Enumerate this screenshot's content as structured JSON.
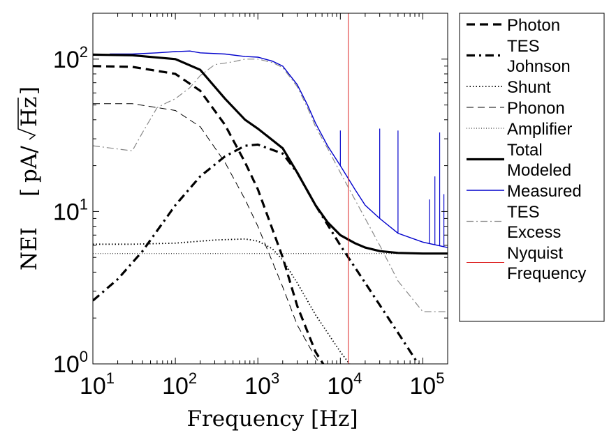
{
  "chart_data": {
    "type": "line",
    "x_scale": "log",
    "y_scale": "log",
    "xlim": [
      10,
      200000
    ],
    "ylim": [
      1,
      200
    ],
    "xlabel": "Frequency [Hz]",
    "ylabel": "NEI [pA/√Hz]",
    "ylabel_parts": {
      "base": "NEI",
      "unit_prefix": "pA/",
      "unit_radical": "Hz"
    },
    "x_ticks": [
      {
        "value": 10,
        "base": "10",
        "exp": "1"
      },
      {
        "value": 100,
        "base": "10",
        "exp": "2"
      },
      {
        "value": 1000,
        "base": "10",
        "exp": "3"
      },
      {
        "value": 10000,
        "base": "10",
        "exp": "4"
      },
      {
        "value": 100000,
        "base": "10",
        "exp": "5"
      }
    ],
    "y_ticks": [
      {
        "value": 1,
        "base": "10",
        "exp": "0"
      },
      {
        "value": 10,
        "base": "10",
        "exp": "1"
      },
      {
        "value": 100,
        "base": "10",
        "exp": "2"
      }
    ],
    "nyquist_frequency_hz": 12500,
    "legend_position": "outside-right",
    "series": [
      {
        "id": "photon",
        "name": "Photon",
        "legend": [
          "Photon"
        ],
        "color": "#000000",
        "dash": "dashed-thick",
        "x": [
          10,
          30,
          100,
          200,
          400,
          700,
          1000,
          2000,
          3000,
          5000,
          7000
        ],
        "y": [
          90,
          89,
          80,
          62,
          37,
          21,
          14,
          5,
          2.4,
          1.2,
          0.9
        ]
      },
      {
        "id": "tes_johnson",
        "name": "TES Johnson",
        "legend": [
          "TES",
          "Johnson"
        ],
        "color": "#000000",
        "dash": "dashdot-thick",
        "x": [
          10,
          20,
          40,
          100,
          200,
          400,
          700,
          1000,
          2000,
          3000,
          5000,
          10000,
          20000,
          50000,
          100000
        ],
        "y": [
          2.6,
          3.6,
          5.5,
          11,
          17,
          23,
          27,
          27.5,
          24,
          18,
          11,
          6,
          3.4,
          1.6,
          0.9
        ]
      },
      {
        "id": "shunt",
        "name": "Shunt",
        "legend": [
          "Shunt"
        ],
        "color": "#000000",
        "dash": "dotted",
        "x": [
          10,
          30,
          100,
          300,
          700,
          1000,
          1500,
          2000,
          3000,
          5000,
          10000,
          15000,
          20000
        ],
        "y": [
          6.1,
          6.1,
          6.2,
          6.5,
          6.6,
          6.4,
          5.7,
          4.8,
          3.4,
          2.1,
          1.2,
          0.9,
          0.8
        ]
      },
      {
        "id": "phonon",
        "name": "Phonon",
        "legend": [
          "Phonon"
        ],
        "color": "#000000",
        "dash": "dashed-thin",
        "x": [
          10,
          30,
          100,
          200,
          400,
          700,
          1000,
          2000,
          3000,
          5000,
          8000
        ],
        "y": [
          51,
          51,
          46,
          36,
          21,
          12,
          8,
          3.2,
          1.8,
          1.1,
          0.8
        ]
      },
      {
        "id": "amplifier",
        "name": "Amplifier",
        "legend": [
          "Amplifier"
        ],
        "color": "#000000",
        "dash": "dotted-thin",
        "x": [
          10,
          200000
        ],
        "y": [
          5.3,
          5.3
        ]
      },
      {
        "id": "total_modeled",
        "name": "Total Modeled",
        "legend": [
          "Total",
          "Modeled"
        ],
        "color": "#000000",
        "dash": "solid-thick",
        "x": [
          10,
          30,
          100,
          200,
          400,
          700,
          1000,
          2000,
          3000,
          5000,
          7000,
          10000,
          15000,
          20000,
          30000,
          50000,
          100000,
          200000
        ],
        "y": [
          107,
          106,
          100,
          85,
          55,
          40,
          35,
          26,
          18,
          11,
          8.5,
          7,
          6.2,
          5.8,
          5.5,
          5.35,
          5.3,
          5.3
        ]
      },
      {
        "id": "measured",
        "name": "Measured",
        "legend": [
          "Measured"
        ],
        "color": "#0000cc",
        "dash": "solid-thin",
        "x": [
          16,
          30,
          60,
          100,
          150,
          200,
          400,
          700,
          1000,
          1500,
          2000,
          3000,
          4000,
          5000,
          7000,
          10000,
          15000,
          20000,
          30000,
          50000,
          100000,
          200000
        ],
        "y": [
          108,
          108,
          110,
          112,
          113,
          110,
          108,
          104,
          103,
          97,
          90,
          68,
          50,
          38,
          27,
          20,
          14,
          11,
          9,
          7.2,
          6.3,
          5.8
        ],
        "spikes": [
          {
            "x": 10000,
            "y": 34
          },
          {
            "x": 30000,
            "y": 35
          },
          {
            "x": 50000,
            "y": 34
          },
          {
            "x": 120000,
            "y": 12
          },
          {
            "x": 140000,
            "y": 17
          },
          {
            "x": 160000,
            "y": 33
          },
          {
            "x": 180000,
            "y": 13
          }
        ]
      },
      {
        "id": "tes_excess",
        "name": "TES Excess",
        "legend": [
          "TES",
          "Excess"
        ],
        "color": "#888888",
        "dash": "dashdot-gray",
        "x": [
          10,
          30,
          40,
          60,
          80,
          100,
          150,
          200,
          300,
          500,
          700,
          1000,
          1500,
          2000,
          3000,
          4000,
          5000,
          7000,
          10000,
          15000,
          20000,
          30000,
          50000,
          100000,
          200000
        ],
        "y": [
          27,
          25,
          33,
          48,
          52,
          55,
          65,
          78,
          92,
          96,
          100,
          100,
          95,
          88,
          66,
          48,
          36,
          26,
          18,
          12,
          9,
          6,
          3.5,
          2.2,
          2.2
        ]
      },
      {
        "id": "nyquist",
        "name": "Nyquist Frequency",
        "legend": [
          "Nyquist",
          "Frequency"
        ],
        "color": "#dd2222",
        "dash": "vertical",
        "x": [
          12500,
          12500
        ],
        "y": [
          1,
          200
        ]
      }
    ]
  }
}
